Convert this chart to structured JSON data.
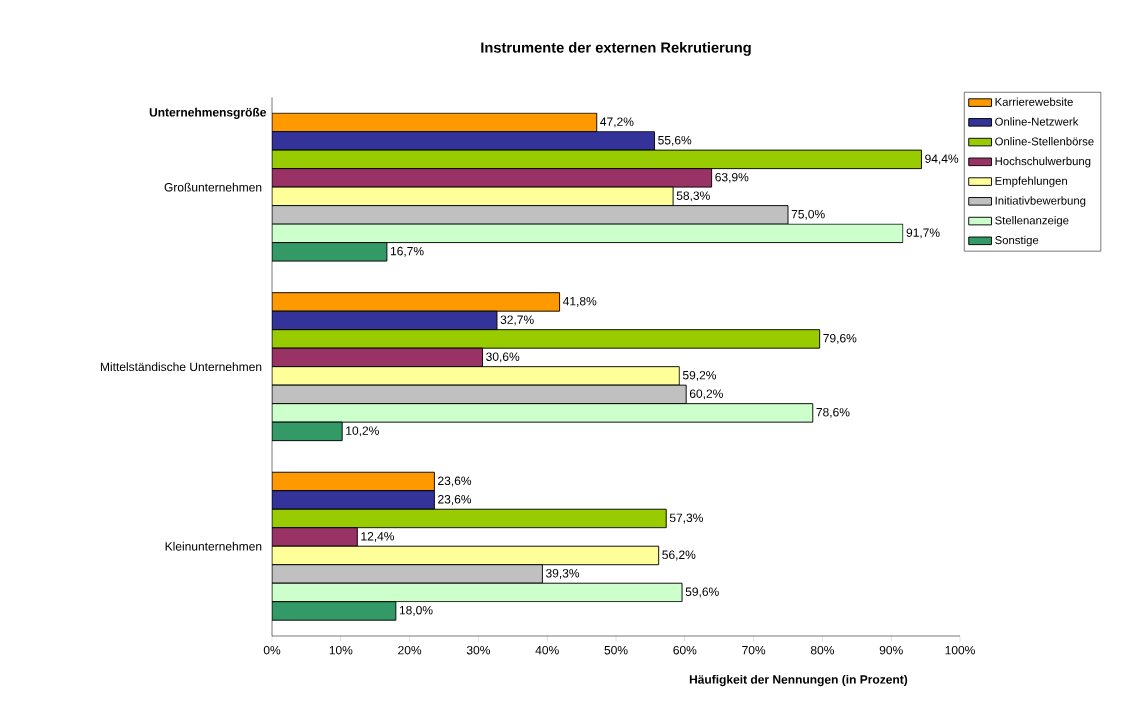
{
  "chart_data": {
    "type": "bar",
    "orientation": "horizontal",
    "title": "Instrumente der externen Rekrutierung",
    "xlabel": "Häufigkeit der Nennungen (in Prozent)",
    "ylabel": "Unternehmensgröße",
    "categories": [
      "Großunternehmen",
      "Mittelständische Unternehmen",
      "Kleinunternehmen"
    ],
    "series": [
      {
        "name": "Karrierewebsite",
        "color": "#ff9900",
        "values": [
          47.2,
          41.8,
          23.6
        ],
        "value_labels": [
          "47,2%",
          "41,8%",
          "23,6%"
        ]
      },
      {
        "name": "Online-Netzwerk",
        "color": "#333399",
        "values": [
          55.6,
          32.7,
          23.6
        ],
        "value_labels": [
          "55,6%",
          "32,7%",
          "23,6%"
        ]
      },
      {
        "name": "Online-Stellenbörse",
        "color": "#99cc00",
        "values": [
          94.4,
          79.6,
          57.3
        ],
        "value_labels": [
          "94,4%",
          "79,6%",
          "57,3%"
        ]
      },
      {
        "name": "Hochschulwerbung",
        "color": "#993366",
        "values": [
          63.9,
          30.6,
          12.4
        ],
        "value_labels": [
          "63,9%",
          "30,6%",
          "12,4%"
        ]
      },
      {
        "name": "Empfehlungen",
        "color": "#ffff99",
        "values": [
          58.3,
          59.2,
          56.2
        ],
        "value_labels": [
          "58,3%",
          "59,2%",
          "56,2%"
        ]
      },
      {
        "name": "Initiativbewerbung",
        "color": "#c0c0c0",
        "values": [
          75.0,
          60.2,
          39.3
        ],
        "value_labels": [
          "75,0%",
          "60,2%",
          "39,3%"
        ]
      },
      {
        "name": "Stellenanzeige",
        "color": "#ccffcc",
        "values": [
          91.7,
          78.6,
          59.6
        ],
        "value_labels": [
          "91,7%",
          "78,6%",
          "59,6%"
        ]
      },
      {
        "name": "Sonstige",
        "color": "#339966",
        "values": [
          16.7,
          10.2,
          18.0
        ],
        "value_labels": [
          "16,7%",
          "10,2%",
          "18,0%"
        ]
      }
    ],
    "xlim": [
      0,
      100
    ],
    "xticks": [
      {
        "value": 0,
        "label": "0%"
      },
      {
        "value": 10,
        "label": "10%"
      },
      {
        "value": 20,
        "label": "20%"
      },
      {
        "value": 30,
        "label": "30%"
      },
      {
        "value": 40,
        "label": "40%"
      },
      {
        "value": 50,
        "label": "50%"
      },
      {
        "value": 60,
        "label": "60%"
      },
      {
        "value": 70,
        "label": "70%"
      },
      {
        "value": 80,
        "label": "80%"
      },
      {
        "value": 90,
        "label": "90%"
      },
      {
        "value": 100,
        "label": "100%"
      }
    ],
    "legend": "right"
  }
}
